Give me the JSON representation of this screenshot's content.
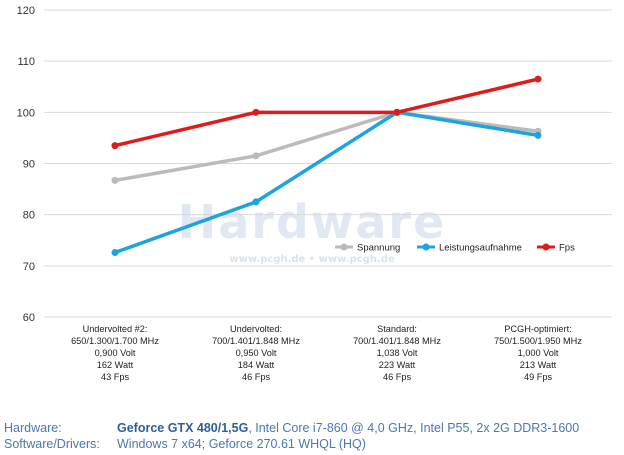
{
  "chart_data": {
    "type": "line",
    "categories": [
      [
        "Undervolted #2:",
        "650/1.300/1.700 MHz",
        "0,900 Volt",
        "162 Watt",
        "43 Fps"
      ],
      [
        "Undervolted:",
        "700/1.401/1.848 MHz",
        "0,950 Volt",
        "184 Watt",
        "46 Fps"
      ],
      [
        "Standard:",
        "700/1.401/1.848 MHz",
        "1,038 Volt",
        "223 Watt",
        "46 Fps"
      ],
      [
        "PCGH-optimiert:",
        "750/1.500/1.950 MHz",
        "1,000 Volt",
        "213 Watt",
        "49 Fps"
      ]
    ],
    "series": [
      {
        "name": "Spannung",
        "color": "#bbbbbb",
        "values": [
          86.7,
          91.5,
          100,
          96.3
        ]
      },
      {
        "name": "Leistungsaufnahme",
        "color": "#1ea3dc",
        "values": [
          72.6,
          82.5,
          100,
          95.5
        ]
      },
      {
        "name": "Fps",
        "color": "#e01b1b",
        "values": [
          93.5,
          100,
          100,
          106.5
        ]
      }
    ],
    "ylim": [
      60,
      120
    ],
    "yticks": [
      60,
      70,
      80,
      90,
      100,
      110,
      120
    ],
    "grid": true,
    "legend_position": "inside-right"
  },
  "watermark": {
    "main": "Hardware",
    "sub": "www.pcgh.de • www.pcgh.de"
  },
  "footer": {
    "hardware_label": "Hardware:",
    "hardware_bold": "Geforce GTX 480/1,5G",
    "hardware_rest": ", Intel Core i7-860 @ 4,0 GHz, Intel P55, 2x 2G DDR3-1600",
    "software_label": "Software/Drivers:",
    "software_value": "Windows 7 x64; Geforce 270.61 WHQL (HQ)"
  }
}
